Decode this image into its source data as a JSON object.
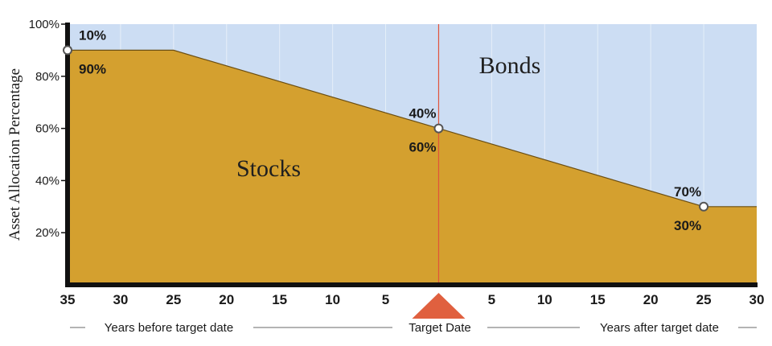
{
  "chart_data": {
    "type": "area",
    "ylabel": "Asset Allocation Percentage",
    "ylim": [
      0,
      100
    ],
    "yticks": [
      20,
      40,
      60,
      80,
      100
    ],
    "ytick_labels": [
      "20%",
      "40%",
      "60%",
      "80%",
      "100%"
    ],
    "x": [
      -35,
      -25,
      0,
      25,
      30
    ],
    "xlim": [
      -35,
      30
    ],
    "xticks": [
      -35,
      -30,
      -25,
      -20,
      -15,
      -10,
      -5,
      5,
      10,
      15,
      20,
      25,
      30
    ],
    "xtick_labels": [
      "35",
      "30",
      "25",
      "20",
      "15",
      "10",
      "5",
      "5",
      "10",
      "15",
      "20",
      "25",
      "30"
    ],
    "series": [
      {
        "name": "Stocks",
        "values": [
          90,
          90,
          60,
          30,
          30
        ]
      },
      {
        "name": "Bonds",
        "values": [
          10,
          10,
          40,
          70,
          70
        ]
      }
    ],
    "annotations": [
      {
        "x": -35,
        "stocks_label": "90%",
        "bonds_label": "10%"
      },
      {
        "x": 0,
        "stocks_label": "60%",
        "bonds_label": "40%"
      },
      {
        "x": 25,
        "stocks_label": "30%",
        "bonds_label": "70%"
      }
    ],
    "target_line_x": 0,
    "captions": {
      "left": "Years before target date",
      "center": "Target Date",
      "right": "Years after target date"
    },
    "colors": {
      "stocks": "#D4A02F",
      "bonds": "#CCDDF3",
      "grid": "#E6EEF9",
      "target_line": "#E0533A",
      "target_marker": "#E0603F",
      "outline": "#111111"
    },
    "grid": true
  }
}
